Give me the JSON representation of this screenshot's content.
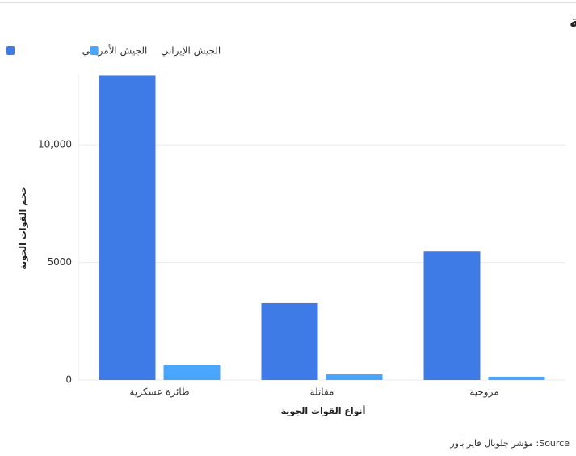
{
  "chart_data": {
    "type": "bar",
    "title": "مقارنة بين القوات الجوية الأمريكية والإيرانية",
    "x_label": "أنواع القوات الجوية",
    "y_label": "حجم القوات الجوية",
    "source": "Source: مؤشر جلوبال فاير باور",
    "categories": [
      "طائرة عسكرية",
      "مقاتلة",
      "مروحية"
    ],
    "series": [
      {
        "name": "الجيش الأمريكي",
        "color": "#3f7be6",
        "values": [
          12950,
          3270,
          5460
        ]
      },
      {
        "name": "الجيش الإيراني",
        "color": "#4aa6fb",
        "values": [
          620,
          240,
          140
        ]
      }
    ],
    "ylim": [
      0,
      13000
    ],
    "yticks": [
      0,
      5000,
      {
        "value": 10000,
        "label": "10,000"
      }
    ],
    "grid": true,
    "legend": "top-left"
  }
}
